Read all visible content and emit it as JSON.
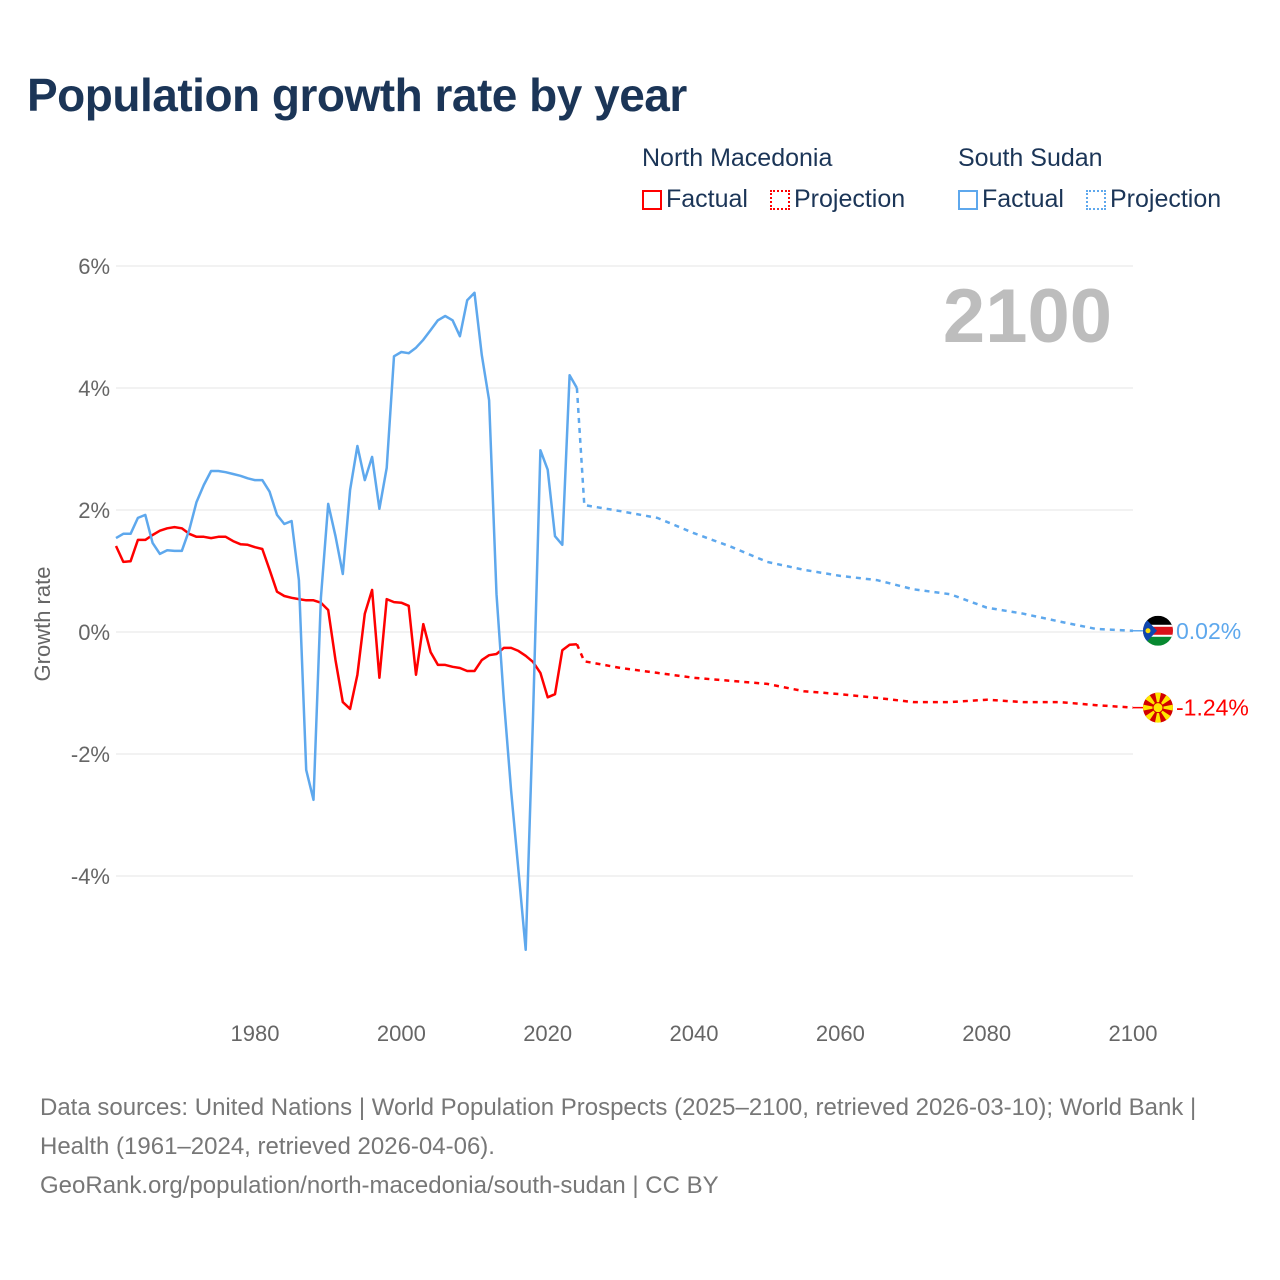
{
  "title": "Population growth rate by year",
  "legend": [
    {
      "group": "North Macedonia",
      "factual": "Factual",
      "projection": "Projection",
      "color": "#ff0000"
    },
    {
      "group": "South Sudan",
      "factual": "Factual",
      "projection": "Projection",
      "color": "#5ea8ed"
    }
  ],
  "footer": {
    "sources": "Data sources: United Nations | World Population Prospects (2025–2100, retrieved 2026-03-10); World Bank | Health (1961–2024, retrieved 2026-04-06).",
    "credit": "GeoRank.org/population/north-macedonia/south-sudan | CC BY"
  },
  "chart_data": {
    "type": "line",
    "title": "Population growth rate by year",
    "ylabel": "Growth rate",
    "xlabel": "",
    "xlim": [
      1961,
      2100
    ],
    "ylim": [
      -5.5,
      6.2
    ],
    "x_ticks": [
      1980,
      2000,
      2020,
      2040,
      2060,
      2080,
      2100
    ],
    "y_ticks": [
      6,
      4,
      2,
      0,
      -2,
      -4
    ],
    "y_tick_labels": [
      "6%",
      "4%",
      "2%",
      "0%",
      "-2%",
      "-4%"
    ],
    "grid": true,
    "year_label": "2100",
    "series": [
      {
        "name": "North Macedonia",
        "color": "#ff0000",
        "end_label": "-1.24%",
        "flag": "north-macedonia-flag",
        "factual_start": 1961,
        "factual": [
          1.41,
          1.15,
          1.16,
          1.51,
          1.51,
          1.59,
          1.66,
          1.7,
          1.72,
          1.7,
          1.61,
          1.56,
          1.56,
          1.54,
          1.56,
          1.56,
          1.49,
          1.44,
          1.43,
          1.39,
          1.36,
          1.02,
          0.66,
          0.59,
          0.56,
          0.54,
          0.52,
          0.52,
          0.48,
          0.36,
          -0.46,
          -1.15,
          -1.26,
          -0.7,
          0.3,
          0.69,
          -0.75,
          0.54,
          0.49,
          0.48,
          0.43,
          -0.7,
          0.13,
          -0.33,
          -0.54,
          -0.54,
          -0.57,
          -0.59,
          -0.64,
          -0.64,
          -0.46,
          -0.38,
          -0.36,
          -0.26,
          -0.26,
          -0.31,
          -0.39,
          -0.49,
          -0.67,
          -1.07,
          -1.02,
          -0.3,
          -0.21,
          -0.2
        ],
        "projection": [
          [
            2025,
            -0.48
          ],
          [
            2030,
            -0.59
          ],
          [
            2035,
            -0.67
          ],
          [
            2040,
            -0.75
          ],
          [
            2045,
            -0.8
          ],
          [
            2050,
            -0.85
          ],
          [
            2055,
            -0.97
          ],
          [
            2060,
            -1.02
          ],
          [
            2065,
            -1.08
          ],
          [
            2070,
            -1.15
          ],
          [
            2075,
            -1.15
          ],
          [
            2080,
            -1.11
          ],
          [
            2085,
            -1.15
          ],
          [
            2090,
            -1.15
          ],
          [
            2095,
            -1.2
          ],
          [
            2100,
            -1.24
          ]
        ]
      },
      {
        "name": "South Sudan",
        "color": "#5ea8ed",
        "end_label": "0.02%",
        "flag": "south-sudan-flag",
        "factual_start": 1961,
        "factual": [
          1.54,
          1.61,
          1.61,
          1.87,
          1.92,
          1.46,
          1.28,
          1.34,
          1.33,
          1.33,
          1.67,
          2.13,
          2.41,
          2.64,
          2.64,
          2.62,
          2.59,
          2.56,
          2.52,
          2.49,
          2.49,
          2.3,
          1.92,
          1.77,
          1.82,
          0.85,
          -2.26,
          -2.75,
          0.56,
          2.1,
          1.57,
          0.95,
          2.33,
          3.05,
          2.49,
          2.87,
          2.02,
          2.69,
          4.52,
          4.59,
          4.57,
          4.66,
          4.79,
          4.95,
          5.11,
          5.18,
          5.11,
          4.85,
          5.44,
          5.56,
          4.54,
          3.8,
          0.62,
          -1.1,
          -2.6,
          -3.9,
          -5.21,
          -1.4,
          2.98,
          2.66,
          1.57,
          1.43,
          4.21,
          4.0
        ],
        "projection": [
          [
            2025,
            2.08
          ],
          [
            2030,
            1.98
          ],
          [
            2035,
            1.87
          ],
          [
            2040,
            1.62
          ],
          [
            2045,
            1.4
          ],
          [
            2050,
            1.15
          ],
          [
            2055,
            1.02
          ],
          [
            2060,
            0.92
          ],
          [
            2065,
            0.85
          ],
          [
            2070,
            0.7
          ],
          [
            2075,
            0.62
          ],
          [
            2080,
            0.4
          ],
          [
            2085,
            0.3
          ],
          [
            2090,
            0.17
          ],
          [
            2095,
            0.05
          ],
          [
            2100,
            0.02
          ]
        ]
      }
    ]
  }
}
